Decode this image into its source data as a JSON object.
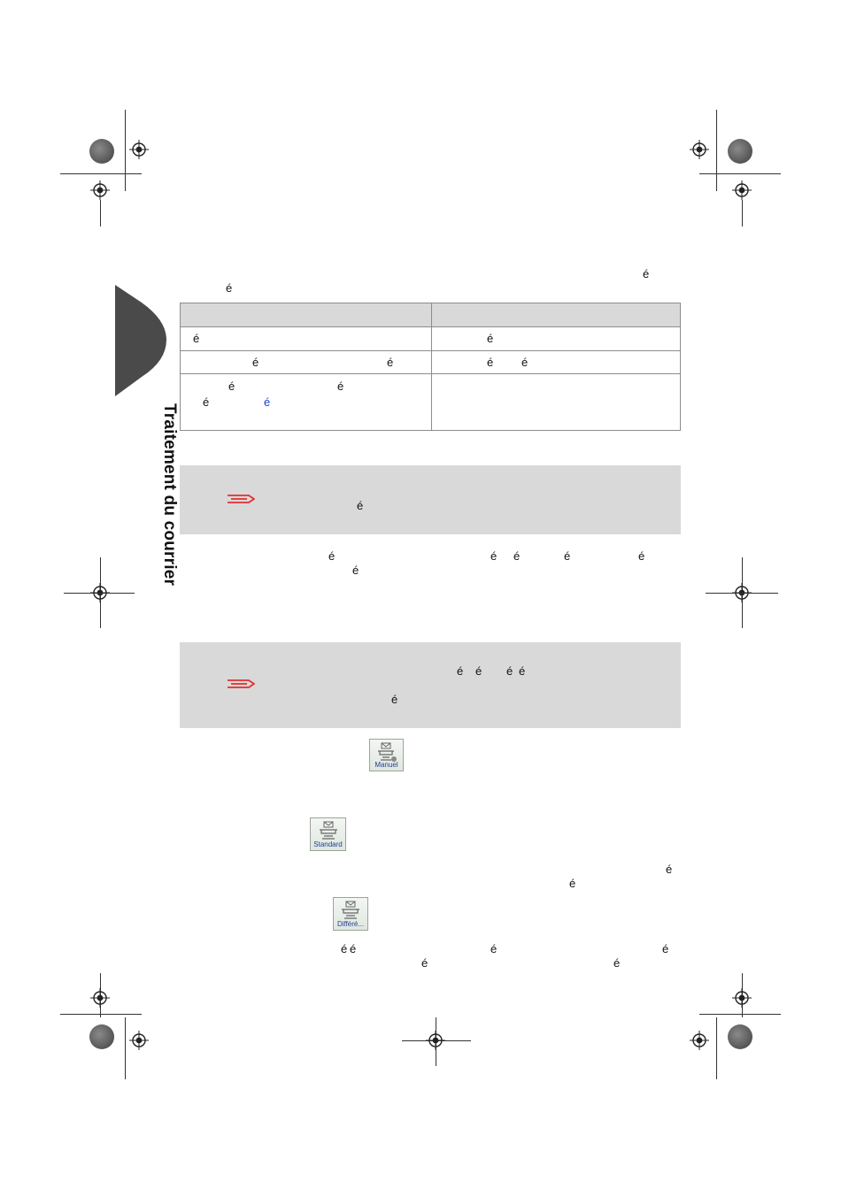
{
  "chapter_tab": {
    "title": "Traitement du courrier",
    "color": "#4a4a4a"
  },
  "glyph_char": "é",
  "note_icon": "paperclip-note-icon",
  "accent_colors": {
    "note_icon": "#e03030",
    "link": "#1a3fd0",
    "table_header": "#d9d9d9",
    "note_bg": "#d9d9d9"
  },
  "buttons": {
    "manual": {
      "label": "Manuel",
      "icon": "mail-manual-icon"
    },
    "standard": {
      "label": "Standard",
      "icon": "mail-standard-icon"
    },
    "deferred": {
      "label": "Différé...",
      "icon": "mail-deferred-icon"
    }
  }
}
